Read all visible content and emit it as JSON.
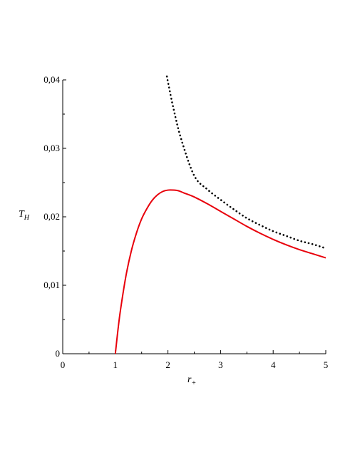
{
  "chart_data": {
    "type": "line",
    "xlabel": {
      "symbol": "r",
      "subscript": "+"
    },
    "ylabel": {
      "symbol": "T",
      "subscript": "H"
    },
    "xlim": [
      0,
      5
    ],
    "ylim": [
      0,
      0.04
    ],
    "x_ticks": [
      {
        "value": 0,
        "label": "0"
      },
      {
        "value": 1,
        "label": "1"
      },
      {
        "value": 2,
        "label": "2"
      },
      {
        "value": 3,
        "label": "3"
      },
      {
        "value": 4,
        "label": "4"
      },
      {
        "value": 5,
        "label": "5"
      }
    ],
    "y_ticks": [
      {
        "value": 0,
        "label": "0"
      },
      {
        "value": 0.01,
        "label": "0,01"
      },
      {
        "value": 0.02,
        "label": "0,02"
      },
      {
        "value": 0.03,
        "label": "0,03"
      },
      {
        "value": 0.04,
        "label": "0,04"
      }
    ],
    "grid": false,
    "legend": "none",
    "series": [
      {
        "style": "solid",
        "color": "#e8000b",
        "x": [
          1.0,
          1.05,
          1.1,
          1.2,
          1.3,
          1.4,
          1.5,
          1.6,
          1.7,
          1.8,
          1.9,
          2.0,
          2.1,
          2.2,
          2.3,
          2.5,
          2.75,
          3.0,
          3.25,
          3.5,
          3.75,
          4.0,
          4.25,
          4.5,
          4.75,
          5.0
        ],
        "y": [
          0.0,
          0.0035,
          0.0065,
          0.0113,
          0.0149,
          0.0176,
          0.0197,
          0.0212,
          0.0224,
          0.0232,
          0.0237,
          0.0239,
          0.0239,
          0.0238,
          0.0235,
          0.0229,
          0.0219,
          0.0208,
          0.0197,
          0.0186,
          0.0176,
          0.0167,
          0.0159,
          0.0152,
          0.0146,
          0.014
        ]
      },
      {
        "style": "dotted",
        "color": "#000000",
        "x": [
          1.98,
          2.0,
          2.1,
          2.25,
          2.5,
          2.75,
          3.0,
          3.25,
          3.5,
          3.75,
          4.0,
          4.25,
          4.5,
          4.75,
          5.0
        ],
        "y": [
          0.0405,
          0.0397,
          0.036,
          0.0314,
          0.026,
          0.024,
          0.0225,
          0.0211,
          0.0198,
          0.0188,
          0.0179,
          0.0172,
          0.0165,
          0.016,
          0.0154
        ]
      }
    ]
  }
}
